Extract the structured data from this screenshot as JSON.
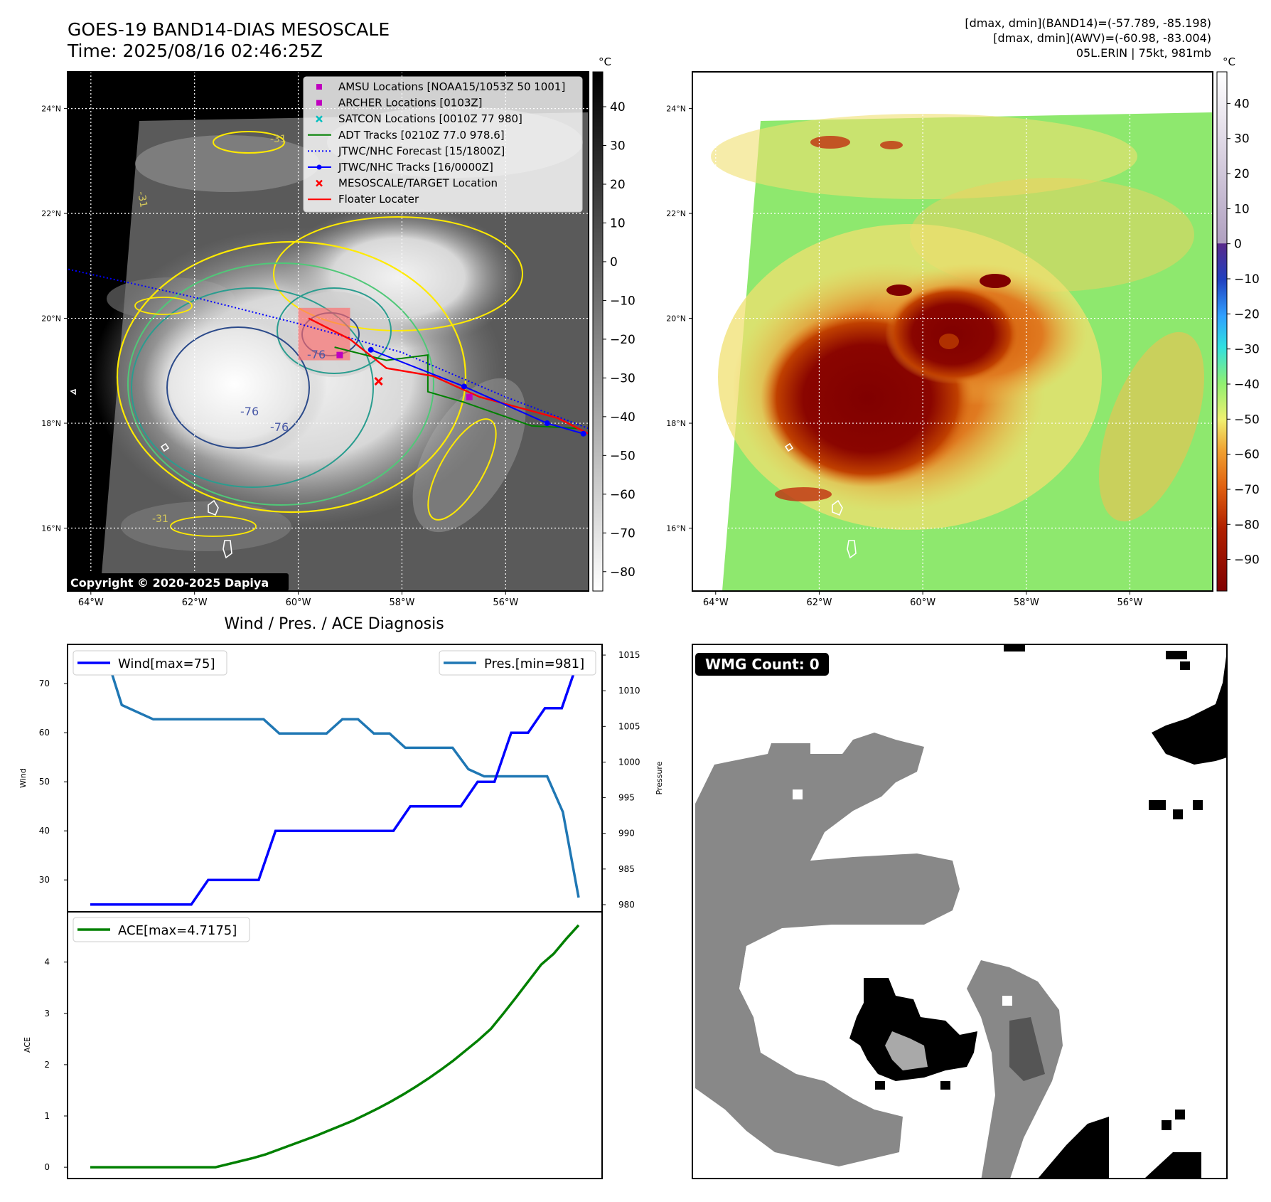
{
  "header": {
    "title_line1": "GOES-19 BAND14-DIAS MESOSCALE",
    "title_line2": "Time: 2025/08/16 02:46:25Z",
    "info_line1": "[dmax, dmin](BAND14)=(-57.789, -85.198)",
    "info_line2": "[dmax, dmin](AWV)=(-60.98, -83.004)",
    "info_line3": "05L.ERIN | 75kt, 981mb"
  },
  "copyright": "Copyright © 2020-2025 Dapiya",
  "map": {
    "lat_labels": [
      "24°N",
      "22°N",
      "20°N",
      "18°N",
      "16°N"
    ],
    "lat_values": [
      24,
      22,
      20,
      18,
      16
    ],
    "lon_labels": [
      "64°W",
      "62°W",
      "60°W",
      "58°W",
      "56°W"
    ],
    "lon_values": [
      -64,
      -62,
      -60,
      -58,
      -56
    ],
    "lon_range": [
      -64.45,
      -54.4
    ],
    "lat_range": [
      14.8,
      24.7
    ],
    "contour_labels": [
      "-76",
      "-76",
      "-76",
      "-31",
      "-31",
      "-31"
    ],
    "legend": [
      {
        "label": "AMSU Locations [NOAA15/1053Z 50 1001]",
        "marker": "square",
        "color": "#bf00bf"
      },
      {
        "label": "ARCHER Locations [0103Z]",
        "marker": "square",
        "color": "#bf00bf"
      },
      {
        "label": "SATCON Locations [0010Z 77 980]",
        "marker": "x",
        "color": "#00bfbf"
      },
      {
        "label": "ADT Tracks [0210Z 77.0 978.6]",
        "marker": "line",
        "color": "#008000"
      },
      {
        "label": "JTWC/NHC Forecast [15/1800Z]",
        "marker": "dotted",
        "color": "#0000ff"
      },
      {
        "label": "JTWC/NHC Tracks [16/0000Z]",
        "marker": "line-dot",
        "color": "#0000ff"
      },
      {
        "label": "MESOSCALE/TARGET Location",
        "marker": "x",
        "color": "#ff0000"
      },
      {
        "label": "Floater Locater",
        "marker": "line",
        "color": "#ff0000"
      }
    ],
    "tracks": {
      "jtwc_forecast": [
        [
          -64.5,
          20.95
        ],
        [
          -62,
          20.4
        ],
        [
          -60,
          19.9
        ],
        [
          -58,
          19.35
        ],
        [
          -56,
          18.5
        ],
        [
          -54.4,
          17.9
        ]
      ],
      "jtwc_track": [
        [
          -58.6,
          19.4
        ],
        [
          -56.8,
          18.7
        ],
        [
          -55.2,
          18.0
        ],
        [
          -54.5,
          17.8
        ]
      ],
      "adt_track": [
        [
          -59.3,
          19.45
        ],
        [
          -58.3,
          19.2
        ],
        [
          -57.5,
          19.3
        ],
        [
          -57.5,
          18.6
        ],
        [
          -56.8,
          18.4
        ],
        [
          -55.5,
          17.95
        ],
        [
          -54.6,
          17.9
        ]
      ],
      "floater": [
        [
          -59.8,
          20.0
        ],
        [
          -59.0,
          19.6
        ],
        [
          -58.3,
          19.05
        ],
        [
          -57.4,
          18.9
        ],
        [
          -56.5,
          18.5
        ],
        [
          -55.0,
          18.1
        ],
        [
          -54.4,
          17.8
        ]
      ],
      "mesoscale_target": [
        -58.45,
        18.8
      ],
      "amsu": [
        -59.2,
        19.3
      ],
      "archer": [
        -56.7,
        18.5
      ],
      "floater_box": [
        -60.0,
        -59.0,
        19.2,
        20.2
      ]
    }
  },
  "colorbar1": {
    "unit": "°C",
    "ticks": [
      "40",
      "30",
      "20",
      "10",
      "0",
      "−10",
      "−20",
      "−30",
      "−40",
      "−50",
      "−60",
      "−70",
      "−80"
    ],
    "range": [
      -85,
      49
    ]
  },
  "colorbar2": {
    "unit": "°C",
    "ticks": [
      "40",
      "30",
      "20",
      "10",
      "0",
      "−10",
      "−20",
      "−30",
      "−40",
      "−50",
      "−60",
      "−70",
      "−80",
      "−90"
    ],
    "range": [
      -99,
      49
    ]
  },
  "chart_data": [
    {
      "type": "line",
      "title": "Wind / Pres. / ACE Diagnosis",
      "ylabel": "Wind",
      "ylim": [
        23.5,
        78
      ],
      "yticks": [
        30,
        40,
        50,
        60,
        70
      ],
      "series": [
        {
          "name": "Wind[max=75]",
          "color": "#0000ff",
          "values": [
            25,
            25,
            25,
            25,
            25,
            25,
            25,
            30,
            30,
            30,
            30,
            40,
            40,
            40,
            40,
            40,
            40,
            40,
            40,
            45,
            45,
            45,
            45,
            50,
            50,
            60,
            60,
            65,
            65,
            75
          ]
        }
      ],
      "legend": "upper left"
    },
    {
      "type": "line",
      "ylabel": "Pressure",
      "ylim": [
        979,
        1016.5
      ],
      "yticks": [
        980,
        985,
        990,
        995,
        1000,
        1005,
        1010,
        1015
      ],
      "series": [
        {
          "name": "Pres.[min=981]",
          "color": "#1f77b4",
          "values": [
            1015,
            1015,
            1008,
            1007,
            1006,
            1006,
            1006,
            1006,
            1006,
            1006,
            1006,
            1006,
            1004,
            1004,
            1004,
            1004,
            1006,
            1006,
            1004,
            1004,
            1002,
            1002,
            1002,
            1002,
            999,
            998,
            998,
            998,
            998,
            998,
            993,
            981
          ]
        }
      ],
      "legend": "upper right"
    },
    {
      "type": "line",
      "ylabel": "ACE",
      "ylim": [
        -0.22,
        4.98
      ],
      "yticks": [
        0,
        1,
        2,
        3,
        4
      ],
      "series": [
        {
          "name": "ACE[max=4.7175]",
          "color": "#008000",
          "values": [
            0,
            0,
            0,
            0,
            0,
            0,
            0,
            0,
            0,
            0,
            0,
            0.06,
            0.12,
            0.18,
            0.25,
            0.34,
            0.43,
            0.52,
            0.61,
            0.71,
            0.81,
            0.91,
            1.03,
            1.15,
            1.28,
            1.42,
            1.57,
            1.73,
            1.9,
            2.08,
            2.28,
            2.48,
            2.7,
            3.0,
            3.31,
            3.63,
            3.95,
            4.16,
            4.45,
            4.72
          ]
        }
      ],
      "legend": "upper left"
    }
  ],
  "wmg": {
    "label": "WMG Count: 0",
    "gray": "#888888",
    "light_gray": "#a9a9a9",
    "dark_gray": "#555555"
  }
}
